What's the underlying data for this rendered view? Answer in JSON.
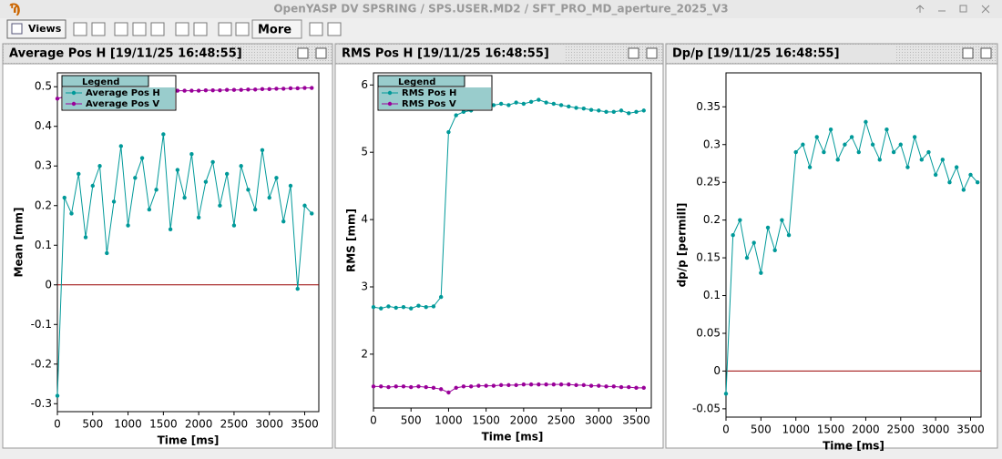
{
  "window": {
    "title": "OpenYASP DV SPSRING / SPS.USER.MD2 / SFT_PRO_MD_aperture_2025_V3"
  },
  "toolbar": {
    "views": "Views",
    "more": "More"
  },
  "chart_data": [
    {
      "type": "line",
      "title": "Average Pos H  [19/11/25 16:48:55]",
      "xlabel": "Time [ms]",
      "ylabel": "Mean [mm]",
      "x": [
        0,
        100,
        200,
        300,
        400,
        500,
        600,
        700,
        800,
        900,
        1000,
        1100,
        1200,
        1300,
        1400,
        1500,
        1600,
        1700,
        1800,
        1900,
        2000,
        2100,
        2200,
        2300,
        2400,
        2500,
        2600,
        2700,
        2800,
        2900,
        3000,
        3100,
        3200,
        3300,
        3400,
        3500,
        3600
      ],
      "xlim": [
        0,
        3700
      ],
      "xticks": [
        0,
        500,
        1000,
        1500,
        2000,
        2500,
        3000,
        3500
      ],
      "ylim": [
        -0.32,
        0.535
      ],
      "yticks": [
        -0.3,
        -0.2,
        -0.1,
        0,
        0.1,
        0.2,
        0.3,
        0.4,
        0.5
      ],
      "legend": "upper left",
      "legend_title": "Legend",
      "zero_line_color": "#990000",
      "series": [
        {
          "name": "Average Pos H",
          "color": "#009999",
          "values": [
            -0.28,
            0.22,
            0.18,
            0.28,
            0.12,
            0.25,
            0.3,
            0.08,
            0.21,
            0.35,
            0.15,
            0.27,
            0.32,
            0.19,
            0.24,
            0.38,
            0.14,
            0.29,
            0.22,
            0.33,
            0.17,
            0.26,
            0.31,
            0.2,
            0.28,
            0.15,
            0.3,
            0.24,
            0.19,
            0.34,
            0.22,
            0.27,
            0.16,
            0.25,
            -0.01,
            0.2,
            0.18
          ]
        },
        {
          "name": "Average Pos V",
          "color": "#990099",
          "values": [
            0.47,
            0.475,
            0.48,
            0.482,
            0.484,
            0.485,
            0.486,
            0.487,
            0.488,
            0.488,
            0.489,
            0.489,
            0.489,
            0.49,
            0.49,
            0.49,
            0.49,
            0.49,
            0.49,
            0.49,
            0.49,
            0.491,
            0.491,
            0.491,
            0.492,
            0.492,
            0.492,
            0.493,
            0.493,
            0.494,
            0.494,
            0.495,
            0.495,
            0.496,
            0.496,
            0.497,
            0.497
          ]
        }
      ]
    },
    {
      "type": "line",
      "title": "RMS Pos H  [19/11/25 16:48:55]",
      "xlabel": "Time [ms]",
      "ylabel": "RMS [mm]",
      "x": [
        0,
        100,
        200,
        300,
        400,
        500,
        600,
        700,
        800,
        900,
        1000,
        1100,
        1200,
        1300,
        1400,
        1500,
        1600,
        1700,
        1800,
        1900,
        2000,
        2100,
        2200,
        2300,
        2400,
        2500,
        2600,
        2700,
        2800,
        2900,
        3000,
        3100,
        3200,
        3300,
        3400,
        3500,
        3600
      ],
      "xlim": [
        0,
        3700
      ],
      "xticks": [
        0,
        500,
        1000,
        1500,
        2000,
        2500,
        3000,
        3500
      ],
      "ylim": [
        1.2,
        6.18
      ],
      "yticks": [
        2,
        3,
        4,
        5,
        6
      ],
      "legend": "upper left",
      "legend_title": "Legend",
      "series": [
        {
          "name": "RMS Pos H",
          "color": "#009999",
          "values": [
            2.7,
            2.68,
            2.71,
            2.69,
            2.7,
            2.68,
            2.72,
            2.7,
            2.71,
            2.85,
            5.3,
            5.55,
            5.6,
            5.62,
            5.65,
            5.68,
            5.7,
            5.72,
            5.7,
            5.74,
            5.72,
            5.75,
            5.78,
            5.74,
            5.72,
            5.7,
            5.68,
            5.66,
            5.65,
            5.63,
            5.62,
            5.6,
            5.6,
            5.62,
            5.58,
            5.6,
            5.62
          ]
        },
        {
          "name": "RMS Pos V",
          "color": "#990099",
          "values": [
            1.52,
            1.52,
            1.51,
            1.52,
            1.52,
            1.51,
            1.52,
            1.51,
            1.5,
            1.48,
            1.43,
            1.5,
            1.52,
            1.52,
            1.53,
            1.53,
            1.53,
            1.54,
            1.54,
            1.54,
            1.55,
            1.55,
            1.55,
            1.55,
            1.55,
            1.55,
            1.55,
            1.54,
            1.54,
            1.53,
            1.53,
            1.52,
            1.52,
            1.51,
            1.51,
            1.5,
            1.5
          ]
        }
      ]
    },
    {
      "type": "line",
      "title": "Dp/p  [19/11/25 16:48:55]",
      "xlabel": "Time [ms]",
      "ylabel": "dp/p [permill]",
      "x": [
        0,
        100,
        200,
        300,
        400,
        500,
        600,
        700,
        800,
        900,
        1000,
        1100,
        1200,
        1300,
        1400,
        1500,
        1600,
        1700,
        1800,
        1900,
        2000,
        2100,
        2200,
        2300,
        2400,
        2500,
        2600,
        2700,
        2800,
        2900,
        3000,
        3100,
        3200,
        3300,
        3400,
        3500,
        3600
      ],
      "xlim": [
        0,
        3650
      ],
      "xticks": [
        0,
        500,
        1000,
        1500,
        2000,
        2500,
        3000,
        3500
      ],
      "ylim": [
        -0.061,
        0.395
      ],
      "yticks": [
        -0.05,
        0,
        0.05,
        0.1,
        0.15,
        0.2,
        0.25,
        0.3,
        0.35
      ],
      "zero_line_color": "#990000",
      "series": [
        {
          "color": "#009999",
          "values": [
            -0.03,
            0.18,
            0.2,
            0.15,
            0.17,
            0.13,
            0.19,
            0.16,
            0.2,
            0.18,
            0.29,
            0.3,
            0.27,
            0.31,
            0.29,
            0.32,
            0.28,
            0.3,
            0.31,
            0.29,
            0.33,
            0.3,
            0.28,
            0.32,
            0.29,
            0.3,
            0.27,
            0.31,
            0.28,
            0.29,
            0.26,
            0.28,
            0.25,
            0.27,
            0.24,
            0.26,
            0.25
          ]
        }
      ]
    }
  ]
}
